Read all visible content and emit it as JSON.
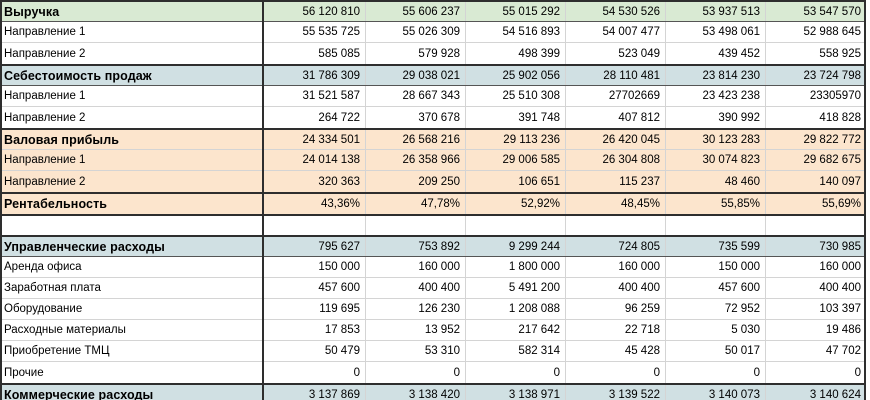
{
  "palette": {
    "header_green": "#d9ead3",
    "header_blue": "#d0e0e3",
    "section_orange": "#fce5cd",
    "gridline": "#d4d4d4",
    "section_border": "#2e2e2e",
    "text": "#000000",
    "background": "#ffffff"
  },
  "rows": [
    {
      "label": "Выручка",
      "kind": "header",
      "bg": "green",
      "border_top": true,
      "header_underline": true,
      "values": [
        "56 120 810",
        "55 606 237",
        "55 015 292",
        "54 530 526",
        "53 937 513",
        "53 547 570"
      ]
    },
    {
      "label": "Направление 1",
      "kind": "item",
      "bg": "white",
      "border_top": false,
      "header_underline": false,
      "values": [
        "55 535 725",
        "55 026 309",
        "54 516 893",
        "54 007 477",
        "53 498 061",
        "52 988 645"
      ]
    },
    {
      "label": "Направление 2",
      "kind": "item",
      "bg": "white",
      "border_top": false,
      "header_underline": false,
      "values": [
        "585 085",
        "579 928",
        "498 399",
        "523 049",
        "439 452",
        "558 925"
      ]
    },
    {
      "label": "Себестоимость продаж",
      "kind": "header",
      "bg": "blue",
      "border_top": true,
      "header_underline": true,
      "values": [
        "31 786 309",
        "29 038 021",
        "25 902 056",
        "28 110 481",
        "23 814 230",
        "23 724 798"
      ]
    },
    {
      "label": "Направление 1",
      "kind": "item",
      "bg": "white",
      "border_top": false,
      "header_underline": false,
      "values": [
        "31 521 587",
        "28 667 343",
        "25 510 308",
        "27702669",
        "23 423 238",
        "23305970"
      ]
    },
    {
      "label": "Направление 2",
      "kind": "item",
      "bg": "white",
      "border_top": false,
      "header_underline": false,
      "values": [
        "264 722",
        "370 678",
        "391 748",
        "407 812",
        "390 992",
        "418 828"
      ]
    },
    {
      "label": "Валовая прибыль",
      "kind": "header",
      "bg": "orange",
      "border_top": true,
      "header_underline": false,
      "values": [
        "24 334 501",
        "26 568 216",
        "29 113 236",
        "26 420 045",
        "30 123 283",
        "29 822 772"
      ]
    },
    {
      "label": "Направление 1",
      "kind": "item",
      "bg": "orange",
      "border_top": false,
      "header_underline": false,
      "values": [
        "24 014 138",
        "26 358 966",
        "29 006 585",
        "26 304 808",
        "30 074 823",
        "29 682 675"
      ]
    },
    {
      "label": "Направление 2",
      "kind": "item",
      "bg": "orange",
      "border_top": false,
      "header_underline": false,
      "values": [
        "320 363",
        "209 250",
        "106 651",
        "115 237",
        "48 460",
        "140 097"
      ]
    },
    {
      "label": "Рентабельность",
      "kind": "header",
      "bg": "orange",
      "border_top": true,
      "header_underline": false,
      "values": [
        "43,36%",
        "47,78%",
        "52,92%",
        "48,45%",
        "55,85%",
        "55,69%"
      ]
    },
    {
      "label": "",
      "kind": "blank",
      "bg": "white",
      "border_top": true,
      "header_underline": false,
      "values": [
        "",
        "",
        "",
        "",
        "",
        ""
      ]
    },
    {
      "label": "Управленческие расходы",
      "kind": "header",
      "bg": "blue",
      "border_top": true,
      "header_underline": true,
      "values": [
        "795 627",
        "753 892",
        "9 299 244",
        "724 805",
        "735 599",
        "730 985"
      ]
    },
    {
      "label": "Аренда офиса",
      "kind": "item",
      "bg": "white",
      "border_top": false,
      "header_underline": false,
      "values": [
        "150 000",
        "160 000",
        "1 800 000",
        "160 000",
        "150 000",
        "160 000"
      ]
    },
    {
      "label": "Заработная плата",
      "kind": "item",
      "bg": "white",
      "border_top": false,
      "header_underline": false,
      "values": [
        "457 600",
        "400 400",
        "5 491 200",
        "400 400",
        "457 600",
        "400 400"
      ]
    },
    {
      "label": "Оборудование",
      "kind": "item",
      "bg": "white",
      "border_top": false,
      "header_underline": false,
      "values": [
        "119 695",
        "126 230",
        "1 208 088",
        "96 259",
        "72 952",
        "103 397"
      ]
    },
    {
      "label": "Расходные материалы",
      "kind": "item",
      "bg": "white",
      "border_top": false,
      "header_underline": false,
      "values": [
        "17 853",
        "13 952",
        "217 642",
        "22 718",
        "5 030",
        "19 486"
      ]
    },
    {
      "label": "Приобретение ТМЦ",
      "kind": "item",
      "bg": "white",
      "border_top": false,
      "header_underline": false,
      "values": [
        "50 479",
        "53 310",
        "582 314",
        "45 428",
        "50 017",
        "47 702"
      ]
    },
    {
      "label": "Прочие",
      "kind": "item",
      "bg": "white",
      "border_top": false,
      "header_underline": false,
      "values": [
        "0",
        "0",
        "0",
        "0",
        "0",
        "0"
      ]
    },
    {
      "label": "Коммерческие расходы",
      "kind": "header",
      "bg": "blue",
      "border_top": true,
      "header_underline": false,
      "values": [
        "3 137 869",
        "3 138 420",
        "3 138 971",
        "3 139 522",
        "3 140 073",
        "3 140 624"
      ]
    }
  ]
}
